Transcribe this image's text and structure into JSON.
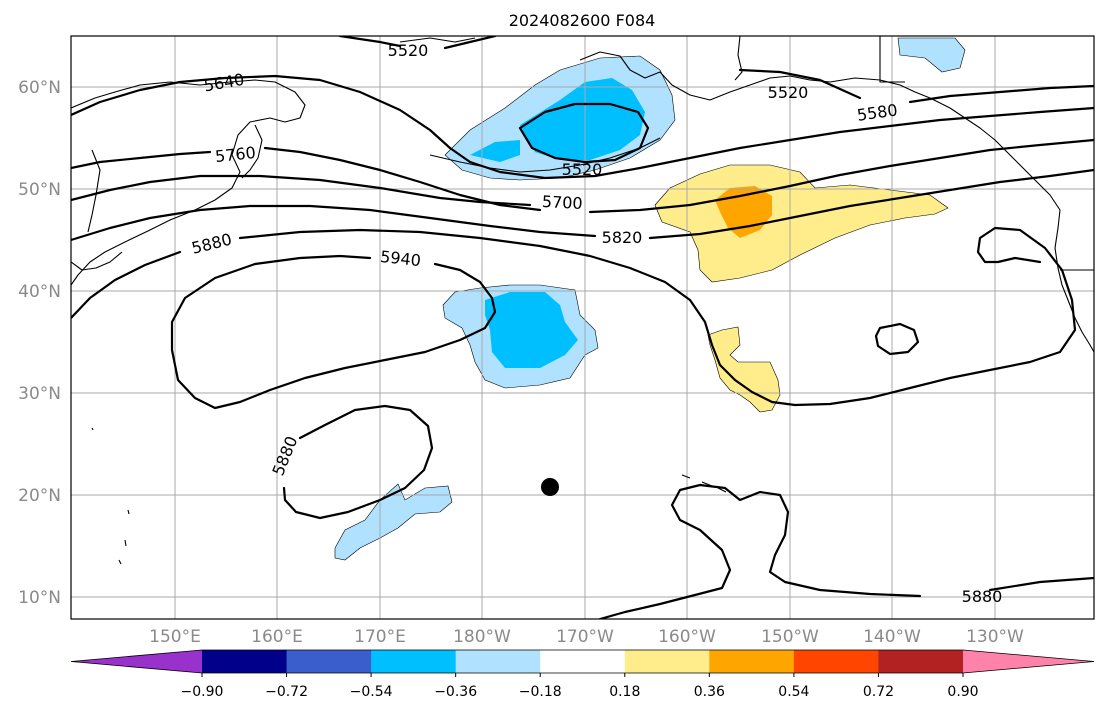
{
  "title": "2024082600 F084",
  "lat_labels": [
    "60°N",
    "50°N",
    "40°N",
    "30°N",
    "20°N",
    "10°N"
  ],
  "lon_labels": [
    "150°E",
    "160°E",
    "170°E",
    "180°W",
    "170°W",
    "160°W",
    "150°W",
    "140°W",
    "130°W"
  ],
  "colorbar": {
    "ticks": [
      "−0.90",
      "−0.72",
      "−0.54",
      "−0.36",
      "−0.18",
      "0.18",
      "0.36",
      "0.54",
      "0.72",
      "0.90"
    ],
    "colors": [
      "#9932cc",
      "#00008b",
      "#3a5fcd",
      "#00bfff",
      "#b0e2ff",
      "#ffffff",
      "#ffec8b",
      "#ffa500",
      "#ff4500",
      "#b22222",
      "#ff82ab"
    ]
  },
  "contour_labels": [
    "5520",
    "5640",
    "5520",
    "5580",
    "5760",
    "5520",
    "5700",
    "5820",
    "5880",
    "5940",
    "5880",
    "5880"
  ],
  "storm_marker": "black-dot"
}
